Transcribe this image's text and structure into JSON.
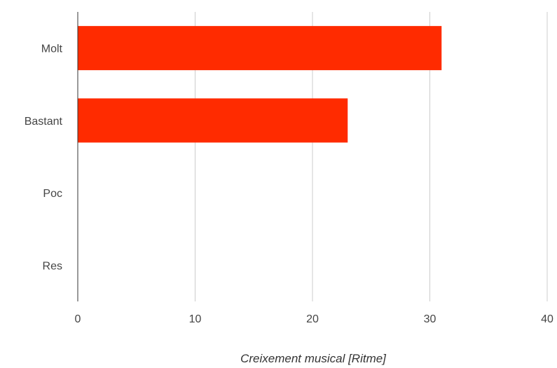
{
  "chart_data": {
    "type": "bar",
    "orientation": "horizontal",
    "categories": [
      "Molt",
      "Bastant",
      "Poc",
      "Res"
    ],
    "values": [
      31,
      23,
      0,
      0
    ],
    "xlabel": "Creixement musical [Ritme]",
    "ylabel": "",
    "title": "",
    "xlim": [
      0,
      40
    ],
    "xticks": [
      "0",
      "10",
      "20",
      "30",
      "40"
    ],
    "grid": true,
    "legend": "none",
    "bar_color": "#ff2b00"
  }
}
